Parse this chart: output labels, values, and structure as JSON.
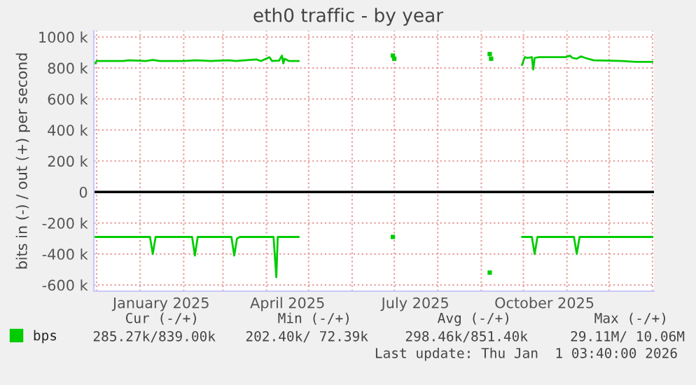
{
  "chart_data": {
    "type": "line",
    "title": "eth0 traffic - by year",
    "ylabel": "bits in (-) / out (+) per second",
    "series": [
      {
        "name": "bps",
        "color": "#00cc00",
        "x": [
          "2024-11-30",
          "2024-12-01",
          "2024-12-20",
          "2024-12-24",
          "2025-01-05",
          "2025-01-10",
          "2025-01-15",
          "2025-02-01",
          "2025-02-10",
          "2025-02-20",
          "2025-03-05",
          "2025-03-10",
          "2025-03-25",
          "2025-03-28",
          "2025-04-03",
          "2025-04-05",
          "2025-04-10",
          "2025-04-12",
          "2025-04-13",
          "2025-04-14",
          "2025-04-17",
          "2025-04-24",
          "2025-05-15",
          "2025-06-30",
          "2025-07-01",
          "2025-08-01",
          "2025-09-07",
          "2025-09-08",
          "2025-09-20",
          "2025-09-30",
          "2025-10-02",
          "2025-10-04",
          "2025-10-07",
          "2025-10-08",
          "2025-10-09",
          "2025-10-12",
          "2025-10-31",
          "2025-11-03",
          "2025-11-05",
          "2025-11-08",
          "2025-11-11",
          "2025-11-14",
          "2025-11-20",
          "2025-12-10",
          "2025-12-20",
          "2026-01-01"
        ],
        "values": [
          830000,
          845000,
          845000,
          850000,
          845000,
          852000,
          845000,
          845000,
          850000,
          845000,
          850000,
          845000,
          855000,
          845000,
          870000,
          845000,
          848000,
          880000,
          830000,
          860000,
          845000,
          845000,
          null,
          null,
          null,
          null,
          null,
          null,
          null,
          820000,
          870000,
          865000,
          870000,
          790000,
          865000,
          870000,
          870000,
          880000,
          865000,
          860000,
          875000,
          865000,
          850000,
          845000,
          840000,
          840000
        ]
      },
      {
        "color": "#00cc00",
        "x": [
          "2024-11-30",
          "2025-01-08",
          "2025-01-10",
          "2025-01-12",
          "2025-02-07",
          "2025-02-09",
          "2025-02-11",
          "2025-03-07",
          "2025-03-09",
          "2025-03-11",
          "2025-03-13",
          "2025-04-06",
          "2025-04-08",
          "2025-04-09",
          "2025-04-24",
          "2025-05-15",
          "2025-06-30",
          "2025-07-01",
          "2025-08-01",
          "2025-09-07",
          "2025-09-08",
          "2025-09-20",
          "2025-09-30",
          "2025-10-07",
          "2025-10-09",
          "2025-10-11",
          "2025-11-06",
          "2025-11-08",
          "2025-11-10",
          "2026-01-01"
        ],
        "values": [
          -290000,
          -290000,
          -400000,
          -290000,
          -290000,
          -410000,
          -290000,
          -290000,
          -410000,
          -300000,
          -290000,
          -290000,
          -550000,
          -290000,
          -290000,
          null,
          null,
          null,
          null,
          null,
          null,
          null,
          -290000,
          -290000,
          -400000,
          -290000,
          -290000,
          -400000,
          -290000,
          -290000
        ]
      },
      {
        "type": "scatter",
        "marker": "square",
        "color": "#00cc00",
        "x": [
          "2025-06-30",
          "2025-07-01",
          "2025-09-07",
          "2025-09-08",
          "2025-06-30",
          "2025-09-07"
        ],
        "values": [
          880000,
          860000,
          890000,
          860000,
          -290000,
          -520000
        ]
      }
    ],
    "xlim": [
      "2024-11-29",
      "2026-01-02"
    ],
    "xticks": [
      {
        "value": "2024-12-01",
        "label": null
      },
      {
        "value": "2025-01-01",
        "label": null
      },
      {
        "value": "2025-01-16",
        "label": "January 2025"
      },
      {
        "value": "2025-02-01",
        "label": null
      },
      {
        "value": "2025-03-01",
        "label": null
      },
      {
        "value": "2025-04-01",
        "label": null
      },
      {
        "value": "2025-04-16",
        "label": "April 2025"
      },
      {
        "value": "2025-05-01",
        "label": null
      },
      {
        "value": "2025-06-01",
        "label": null
      },
      {
        "value": "2025-07-01",
        "label": null
      },
      {
        "value": "2025-07-16",
        "label": "July 2025"
      },
      {
        "value": "2025-08-01",
        "label": null
      },
      {
        "value": "2025-09-01",
        "label": null
      },
      {
        "value": "2025-10-01",
        "label": null
      },
      {
        "value": "2025-10-16",
        "label": "October 2025"
      },
      {
        "value": "2025-11-01",
        "label": null
      },
      {
        "value": "2025-12-01",
        "label": null
      },
      {
        "value": "2026-01-01",
        "label": null
      }
    ],
    "ylim": [
      -640000,
      1040000
    ],
    "yticks": [
      {
        "value": -600000,
        "label": "-600 k"
      },
      {
        "value": -400000,
        "label": "-400 k"
      },
      {
        "value": -200000,
        "label": "-200 k"
      },
      0,
      {
        "value": 200000,
        "label": "200 k"
      },
      {
        "value": 400000,
        "label": "400 k"
      },
      {
        "value": 600000,
        "label": "600 k"
      },
      {
        "value": 800000,
        "label": "800 k"
      },
      {
        "value": 1000000,
        "label": "1000 k"
      }
    ],
    "grid": true,
    "legend": "bottom left",
    "line_style": "solid",
    "ref_lines": [
      {
        "axis": "y",
        "value": 0,
        "color": "#000000"
      }
    ],
    "annotations": [
      "Cur (-/+)",
      "Min (-/+)",
      "Avg (-/+)",
      "Max (-/+)",
      "285.27k/839.00k",
      "202.40k/ 72.39k",
      "298.46k/851.40k",
      "29.11M/ 10.06M",
      "Last update: Thu Jan  1 03:40:00 2026"
    ]
  }
}
